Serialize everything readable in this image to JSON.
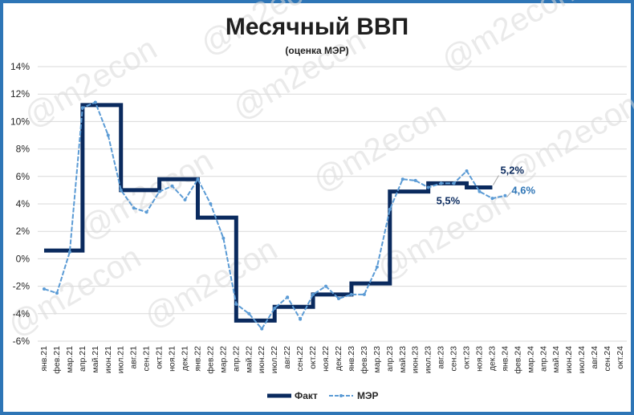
{
  "watermark": "@m2econ",
  "chart_data": {
    "type": "line",
    "title": "Месячный ВВП",
    "subtitle": "(оценка МЭР)",
    "ylim": [
      -6,
      14
    ],
    "yticks": [
      "-6%",
      "-4%",
      "-2%",
      "0%",
      "2%",
      "4%",
      "6%",
      "8%",
      "10%",
      "12%",
      "14%"
    ],
    "grid": true,
    "legend_position": "bottom",
    "categories": [
      "янв.21",
      "фев.21",
      "мар.21",
      "апр.21",
      "май.21",
      "июн.21",
      "июл.21",
      "авг.21",
      "сен.21",
      "окт.21",
      "ноя.21",
      "дек.21",
      "янв.22",
      "фев.22",
      "мар.22",
      "апр.22",
      "май.22",
      "июн.22",
      "июл.22",
      "авг.22",
      "сен.22",
      "окт.22",
      "ноя.22",
      "дек.22",
      "янв.23",
      "фев.23",
      "мар.23",
      "апр.23",
      "май.23",
      "июн.23",
      "июл.23",
      "авг.23",
      "сен.23",
      "окт.23",
      "ноя.23",
      "дек.23",
      "янв.24",
      "фев.24",
      "мар.24",
      "апр.24",
      "май.24",
      "июн.24",
      "июл.24",
      "авг.24",
      "сен.24",
      "окт.24"
    ],
    "series": [
      {
        "name": "Факт",
        "color": "#0a2a5e",
        "style": "step",
        "values": [
          0.6,
          0.6,
          0.6,
          11.2,
          11.2,
          11.2,
          5.0,
          5.0,
          5.0,
          5.8,
          5.8,
          5.8,
          3.0,
          3.0,
          3.0,
          -4.5,
          -4.5,
          -4.5,
          -3.5,
          -3.5,
          -3.5,
          -2.6,
          -2.6,
          -2.6,
          -1.8,
          -1.8,
          -1.8,
          4.9,
          4.9,
          4.9,
          5.5,
          5.5,
          5.5,
          5.2,
          5.2,
          5.2,
          null,
          null,
          null,
          null,
          null,
          null,
          null,
          null,
          null,
          null
        ]
      },
      {
        "name": "МЭР",
        "color": "#5b9bd5",
        "style": "line-markers",
        "values": [
          -2.2,
          -2.5,
          0.5,
          11.0,
          11.4,
          9.0,
          5.0,
          3.7,
          3.4,
          4.9,
          5.3,
          4.3,
          5.8,
          4.0,
          1.5,
          -3.3,
          -4.0,
          -5.1,
          -3.6,
          -2.8,
          -4.4,
          -2.6,
          -2.0,
          -2.9,
          -2.6,
          -2.6,
          -0.6,
          3.6,
          5.8,
          5.7,
          5.2,
          5.5,
          5.5,
          6.4,
          4.9,
          4.4,
          4.6,
          null,
          null,
          null,
          null,
          null,
          null,
          null,
          null,
          null
        ]
      }
    ],
    "annotations": [
      {
        "text": "5,2%",
        "series": "Факт",
        "category": "дек.23",
        "color": "#0a2a5e"
      },
      {
        "text": "4,6%",
        "series": "МЭР",
        "category": "янв.24",
        "color": "#2e75b6"
      },
      {
        "text": "5,5%",
        "series": "Факт",
        "category": "сен.23",
        "color": "#0a2a5e"
      }
    ]
  }
}
